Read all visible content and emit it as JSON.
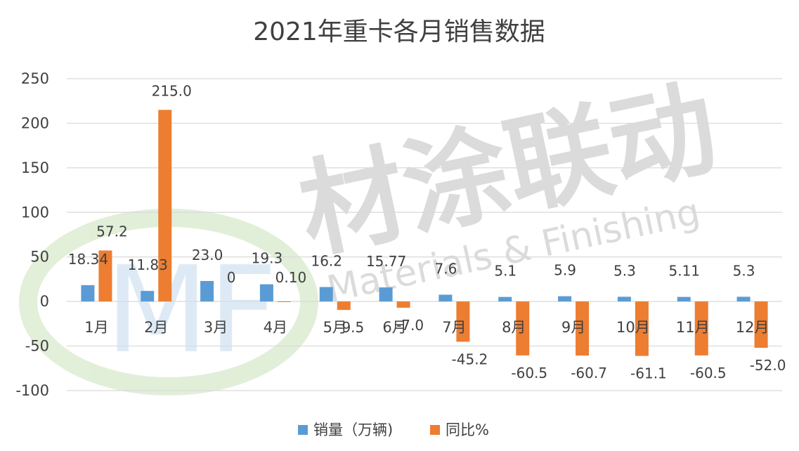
{
  "chart_data": {
    "type": "bar",
    "title": "2021年重卡各月销售数据",
    "categories": [
      "1月",
      "2月",
      "3月",
      "4月",
      "5月",
      "6月",
      "7月",
      "8月",
      "9月",
      "10月",
      "11月",
      "12月"
    ],
    "series": [
      {
        "name": "销量（万辆)",
        "color": "#5b9bd5",
        "values": [
          18.34,
          11.83,
          23.0,
          19.3,
          16.2,
          15.77,
          7.6,
          5.1,
          5.9,
          5.3,
          5.11,
          5.3
        ],
        "labels": [
          "18.34",
          "11.83",
          "23.0",
          "19.3",
          "16.2",
          "15.77",
          "7.6",
          "5.1",
          "5.9",
          "5.3",
          "5.11",
          "5.3"
        ]
      },
      {
        "name": "同比%",
        "color": "#ed7d31",
        "values": [
          57.2,
          215.0,
          0,
          0.1,
          -9.5,
          -7.0,
          -45.2,
          -60.5,
          -60.7,
          -61.1,
          -60.5,
          -52.0
        ],
        "labels": [
          "57.2",
          "215.0",
          "0",
          "0.10",
          "-9.5",
          "-7.0",
          "-45.2",
          "-60.5",
          "-60.7",
          "-61.1",
          "-60.5",
          "-52.0"
        ]
      }
    ],
    "yticks": [
      "250",
      "200",
      "150",
      "100",
      "50",
      "0",
      "-50",
      "-100"
    ],
    "ylim": [
      -100,
      250
    ],
    "grid": true,
    "legend": "bottom"
  },
  "watermark": {
    "cn": "材涂联动",
    "en": "Materials & Finishing",
    "logo": "MF"
  }
}
